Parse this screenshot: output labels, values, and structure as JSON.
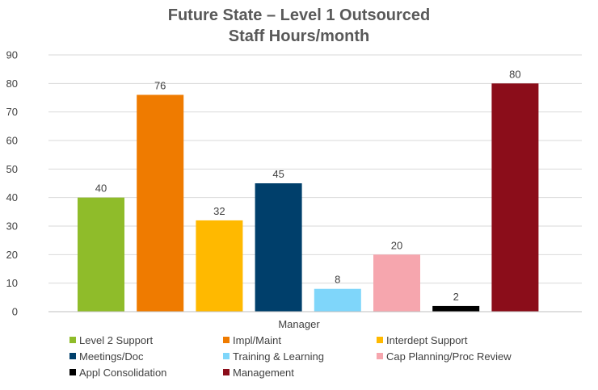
{
  "chart_data": {
    "type": "bar",
    "title_lines": [
      "Future State – Level 1 Outsourced",
      "Staff Hours/month"
    ],
    "categories": [
      "Manager"
    ],
    "series": [
      {
        "name": "Level 2 Support",
        "values": [
          40
        ],
        "color": "#8FBC2A"
      },
      {
        "name": "Impl/Maint",
        "values": [
          76
        ],
        "color": "#EF7B00"
      },
      {
        "name": "Interdept Support",
        "values": [
          32
        ],
        "color": "#FFB900"
      },
      {
        "name": "Meetings/Doc",
        "values": [
          45
        ],
        "color": "#003F6B"
      },
      {
        "name": "Training & Learning",
        "values": [
          8
        ],
        "color": "#7FD6FA"
      },
      {
        "name": "Cap Planning/Proc Review",
        "values": [
          20
        ],
        "color": "#F6A6AE"
      },
      {
        "name": "Appl Consolidation",
        "values": [
          2
        ],
        "color": "#000000"
      },
      {
        "name": "Management",
        "values": [
          80
        ],
        "color": "#8B0D1A"
      }
    ],
    "xlabel": "",
    "ylabel": "",
    "ylim": [
      0,
      90
    ],
    "yticks": [
      0,
      10,
      20,
      30,
      40,
      50,
      60,
      70,
      80,
      90
    ],
    "grid": true,
    "data_labels": true,
    "legend_position": "bottom"
  }
}
